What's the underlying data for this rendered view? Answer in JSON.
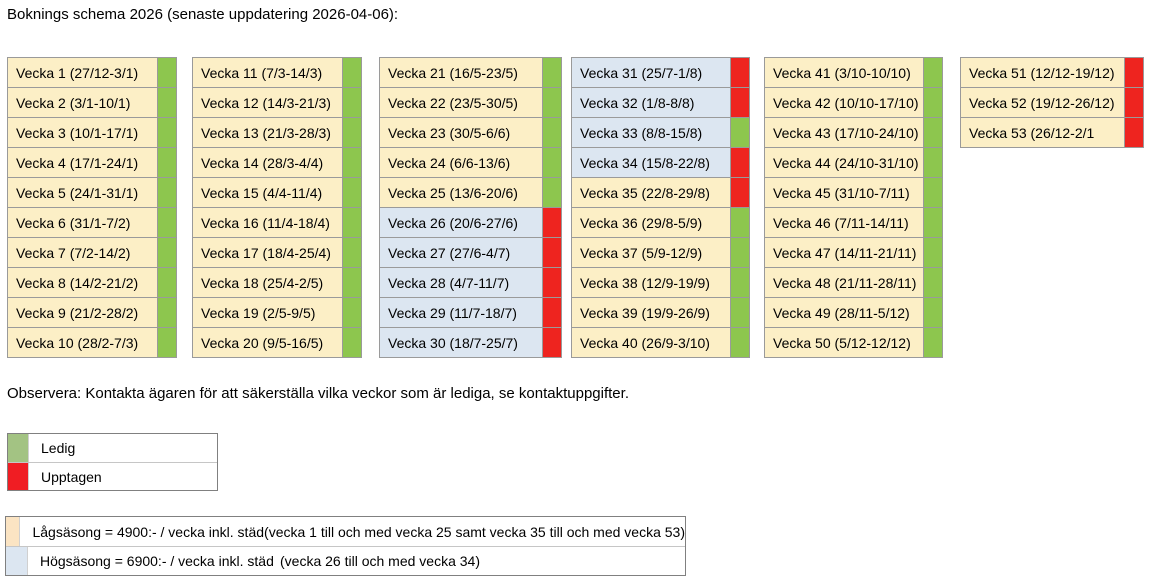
{
  "title": "Boknings schema 2026 (senaste uppdatering 2026-04-06):",
  "note": "Observera: Kontakta ägaren för att säkerställa vilka veckor som är lediga, se kontaktuppgifter.",
  "colors": {
    "low_season": "#FCEFC6",
    "high_season": "#DCE6F1",
    "free": "#8DC64E",
    "busy": "#EE241F",
    "legend_free": "#A3C383",
    "legend_busy": "#F01D23",
    "price_low": "#FBE4C3",
    "price_high": "#DCE6F1"
  },
  "status_legend": [
    {
      "label": "Ledig",
      "status": "free"
    },
    {
      "label": "Upptagen",
      "status": "busy"
    }
  ],
  "price_legend": [
    {
      "season": "low",
      "text": "Lågsäsong = 4900:- / vecka inkl. städ",
      "range": "(vecka 1 till och med vecka 25 samt vecka 35 till och med vecka 53)"
    },
    {
      "season": "high",
      "text": "Högsäsong = 6900:- / vecka inkl. städ",
      "range": "(vecka 26 till och med vecka 34)"
    }
  ],
  "columns": [
    {
      "weeks": [
        {
          "label": "Vecka 1 (27/12-3/1)",
          "season": "low",
          "status": "free"
        },
        {
          "label": "Vecka 2 (3/1-10/1)",
          "season": "low",
          "status": "free"
        },
        {
          "label": "Vecka 3 (10/1-17/1)",
          "season": "low",
          "status": "free"
        },
        {
          "label": "Vecka 4 (17/1-24/1)",
          "season": "low",
          "status": "free"
        },
        {
          "label": "Vecka 5 (24/1-31/1)",
          "season": "low",
          "status": "free"
        },
        {
          "label": "Vecka 6 (31/1-7/2)",
          "season": "low",
          "status": "free"
        },
        {
          "label": "Vecka 7 (7/2-14/2)",
          "season": "low",
          "status": "free"
        },
        {
          "label": "Vecka 8 (14/2-21/2)",
          "season": "low",
          "status": "free"
        },
        {
          "label": "Vecka 9 (21/2-28/2)",
          "season": "low",
          "status": "free"
        },
        {
          "label": "Vecka 10 (28/2-7/3)",
          "season": "low",
          "status": "free"
        }
      ]
    },
    {
      "weeks": [
        {
          "label": "Vecka 11 (7/3-14/3)",
          "season": "low",
          "status": "free"
        },
        {
          "label": "Vecka 12 (14/3-21/3)",
          "season": "low",
          "status": "free"
        },
        {
          "label": "Vecka 13 (21/3-28/3)",
          "season": "low",
          "status": "free"
        },
        {
          "label": "Vecka 14 (28/3-4/4)",
          "season": "low",
          "status": "free"
        },
        {
          "label": "Vecka 15 (4/4-11/4)",
          "season": "low",
          "status": "free"
        },
        {
          "label": "Vecka 16 (11/4-18/4)",
          "season": "low",
          "status": "free"
        },
        {
          "label": "Vecka 17 (18/4-25/4)",
          "season": "low",
          "status": "free"
        },
        {
          "label": "Vecka 18 (25/4-2/5)",
          "season": "low",
          "status": "free"
        },
        {
          "label": "Vecka 19 (2/5-9/5)",
          "season": "low",
          "status": "free"
        },
        {
          "label": "Vecka 20 (9/5-16/5)",
          "season": "low",
          "status": "free"
        }
      ]
    },
    {
      "weeks": [
        {
          "label": "Vecka 21 (16/5-23/5)",
          "season": "low",
          "status": "free"
        },
        {
          "label": "Vecka 22 (23/5-30/5)",
          "season": "low",
          "status": "free"
        },
        {
          "label": "Vecka 23 (30/5-6/6)",
          "season": "low",
          "status": "free"
        },
        {
          "label": "Vecka 24 (6/6-13/6)",
          "season": "low",
          "status": "free"
        },
        {
          "label": "Vecka 25 (13/6-20/6)",
          "season": "low",
          "status": "free"
        },
        {
          "label": "Vecka 26 (20/6-27/6)",
          "season": "high",
          "status": "busy"
        },
        {
          "label": "Vecka 27 (27/6-4/7)",
          "season": "high",
          "status": "busy"
        },
        {
          "label": "Vecka 28 (4/7-11/7)",
          "season": "high",
          "status": "busy"
        },
        {
          "label": "Vecka 29 (11/7-18/7)",
          "season": "high",
          "status": "busy"
        },
        {
          "label": "Vecka 30 (18/7-25/7)",
          "season": "high",
          "status": "busy"
        }
      ]
    },
    {
      "weeks": [
        {
          "label": "Vecka 31 (25/7-1/8)",
          "season": "high",
          "status": "busy"
        },
        {
          "label": "Vecka 32 (1/8-8/8)",
          "season": "high",
          "status": "busy"
        },
        {
          "label": "Vecka 33 (8/8-15/8)",
          "season": "high",
          "status": "free"
        },
        {
          "label": "Vecka 34 (15/8-22/8)",
          "season": "high",
          "status": "busy"
        },
        {
          "label": "Vecka 35 (22/8-29/8)",
          "season": "low",
          "status": "busy"
        },
        {
          "label": "Vecka 36 (29/8-5/9)",
          "season": "low",
          "status": "free"
        },
        {
          "label": "Vecka 37 (5/9-12/9)",
          "season": "low",
          "status": "free"
        },
        {
          "label": "Vecka 38 (12/9-19/9)",
          "season": "low",
          "status": "free"
        },
        {
          "label": "Vecka 39 (19/9-26/9)",
          "season": "low",
          "status": "free"
        },
        {
          "label": "Vecka 40 (26/9-3/10)",
          "season": "low",
          "status": "free"
        }
      ]
    },
    {
      "weeks": [
        {
          "label": "Vecka 41 (3/10-10/10)",
          "season": "low",
          "status": "free"
        },
        {
          "label": "Vecka 42 (10/10-17/10)",
          "season": "low",
          "status": "free"
        },
        {
          "label": "Vecka 43 (17/10-24/10)",
          "season": "low",
          "status": "free"
        },
        {
          "label": "Vecka 44 (24/10-31/10)",
          "season": "low",
          "status": "free"
        },
        {
          "label": "Vecka 45 (31/10-7/11)",
          "season": "low",
          "status": "free"
        },
        {
          "label": "Vecka 46 (7/11-14/11)",
          "season": "low",
          "status": "free"
        },
        {
          "label": "Vecka 47 (14/11-21/11)",
          "season": "low",
          "status": "free"
        },
        {
          "label": "Vecka 48 (21/11-28/11)",
          "season": "low",
          "status": "free"
        },
        {
          "label": "Vecka 49 (28/11-5/12)",
          "season": "low",
          "status": "free"
        },
        {
          "label": "Vecka 50 (5/12-12/12)",
          "season": "low",
          "status": "free"
        }
      ]
    },
    {
      "weeks": [
        {
          "label": "Vecka 51 (12/12-19/12)",
          "season": "low",
          "status": "busy"
        },
        {
          "label": "Vecka 52 (19/12-26/12)",
          "season": "low",
          "status": "busy"
        },
        {
          "label": "Vecka 53 (26/12-2/1",
          "season": "low",
          "status": "busy"
        }
      ]
    }
  ]
}
